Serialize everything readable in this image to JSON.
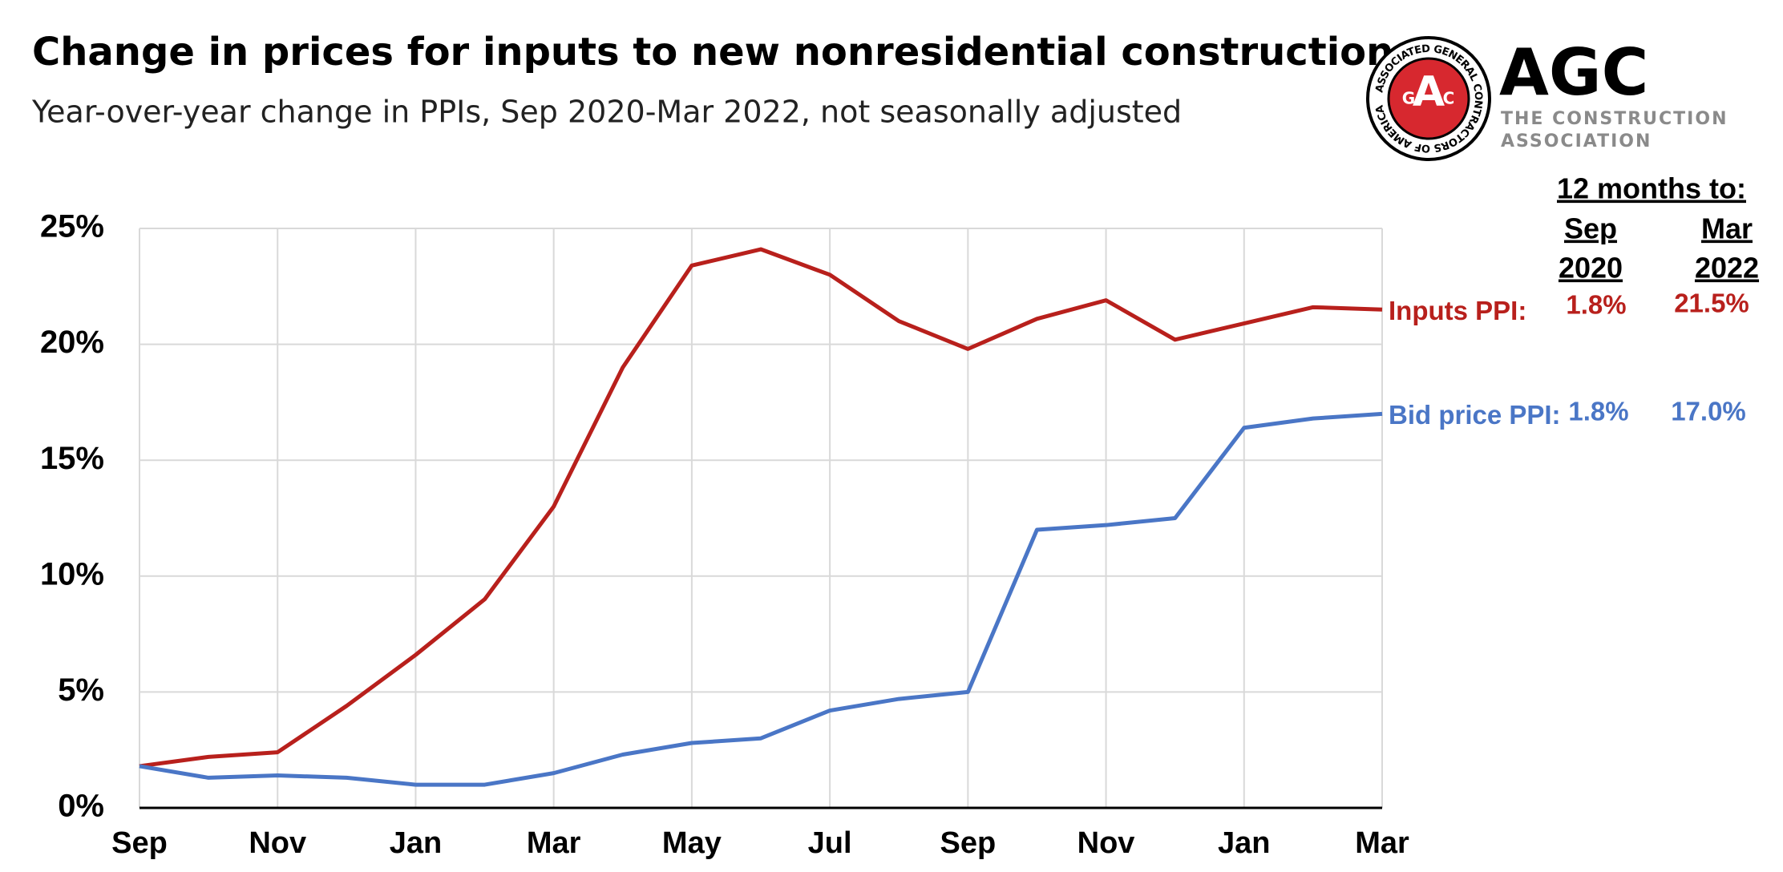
{
  "chart_data": {
    "type": "line",
    "title": "Change in prices for inputs to new nonresidential construction",
    "subtitle": "Year-over-year change in PPIs, Sep 2020-Mar 2022, not seasonally adjusted",
    "categories": [
      "Sep",
      null,
      "Nov",
      null,
      "Jan",
      null,
      "Mar",
      null,
      "May",
      null,
      "Jul",
      null,
      "Sep",
      null,
      "Nov",
      null,
      "Jan",
      null,
      "Mar"
    ],
    "series": [
      {
        "name": "Inputs PPI:",
        "color": "#b8201c",
        "values": [
          1.8,
          2.2,
          2.4,
          4.4,
          6.6,
          9.0,
          13.0,
          19.0,
          23.4,
          24.1,
          23.0,
          21.0,
          19.8,
          21.1,
          21.9,
          20.2,
          20.9,
          21.6,
          21.5
        ]
      },
      {
        "name": "Bid price PPI:",
        "color": "#4a76c6",
        "values": [
          1.8,
          1.3,
          1.4,
          1.3,
          1.0,
          1.0,
          1.5,
          2.3,
          2.8,
          3.0,
          4.2,
          4.7,
          5.0,
          12.0,
          12.2,
          12.5,
          16.4,
          16.8,
          17.0
        ]
      }
    ],
    "ylim": [
      0,
      25
    ],
    "yticks": [
      {
        "value": 0,
        "label": "0%"
      },
      {
        "value": 5,
        "label": "5%"
      },
      {
        "value": 10,
        "label": "10%"
      },
      {
        "value": 15,
        "label": "15%"
      },
      {
        "value": 20,
        "label": "20%"
      },
      {
        "value": 25,
        "label": "25%"
      }
    ],
    "grid": true,
    "summary": {
      "title": "12 months to:",
      "columns": [
        {
          "month": "Sep",
          "year": "2020"
        },
        {
          "month": "Mar",
          "year": "2022"
        }
      ],
      "rows": [
        [
          "1.8%",
          "21.5%"
        ],
        [
          "1.8%",
          "17.0%"
        ]
      ]
    }
  },
  "logo": {
    "name": "AGC",
    "tagline_1": "THE CONSTRUCTION",
    "tagline_2": "ASSOCIATION",
    "ring_text": "ASSOCIATED GENERAL CONTRACTORS OF AMERICA",
    "letter_a": "A",
    "letter_g": "G",
    "letter_c": "C"
  }
}
